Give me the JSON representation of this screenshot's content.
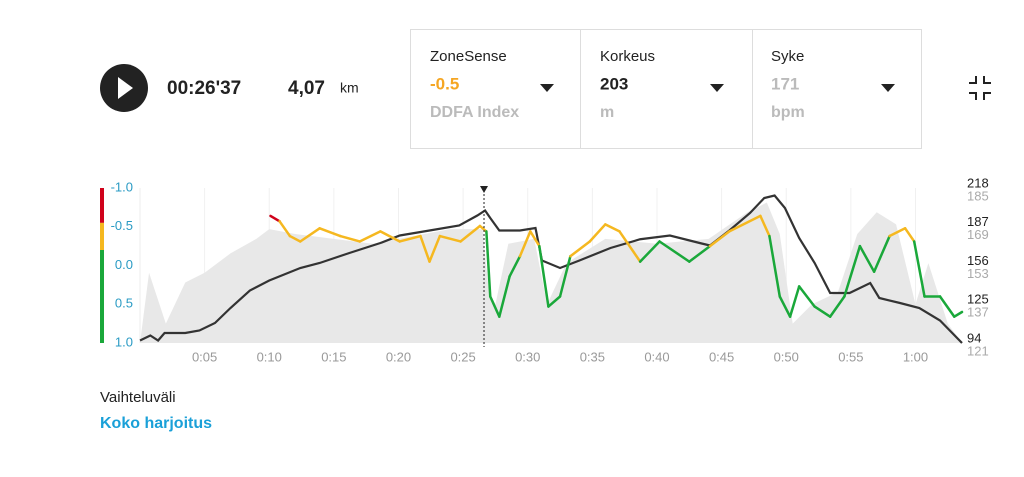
{
  "header": {
    "time": "00:26'37",
    "distance": "4,07",
    "distance_unit": "km"
  },
  "panels": [
    {
      "label": "ZoneSense",
      "value": "-0.5",
      "unit": "DDFA Index",
      "color": "#f5a623"
    },
    {
      "label": "Korkeus",
      "value": "203",
      "unit": "m",
      "color": "#222222"
    },
    {
      "label": "Syke",
      "value": "171",
      "unit": "bpm",
      "color": "#bbbbbb"
    }
  ],
  "chart_data": {
    "type": "line",
    "xlim": [
      0,
      63.6
    ],
    "xticks": [
      {
        "value": 5,
        "label": "0:05"
      },
      {
        "value": 10,
        "label": "0:10"
      },
      {
        "value": 15,
        "label": "0:15"
      },
      {
        "value": 20,
        "label": "0:20"
      },
      {
        "value": 25,
        "label": "0:25"
      },
      {
        "value": 30,
        "label": "0:30"
      },
      {
        "value": 35,
        "label": "0:35"
      },
      {
        "value": 40,
        "label": "0:40"
      },
      {
        "value": 45,
        "label": "0:45"
      },
      {
        "value": 50,
        "label": "0:50"
      },
      {
        "value": 55,
        "label": "0:55"
      },
      {
        "value": 60,
        "label": "1:00"
      }
    ],
    "ylim": [
      -1,
      1
    ],
    "y_inverted": true,
    "yticks": [
      {
        "value": -1,
        "label": "-1.0"
      },
      -0.5,
      {
        "value": 0,
        "label": "0.0"
      },
      0.5,
      {
        "value": 1,
        "label": "1.0"
      }
    ],
    "zones": [
      {
        "range": [
          -1,
          -0.55
        ],
        "color": "#d0021b"
      },
      {
        "range": [
          -0.55,
          -0.2
        ],
        "color": "#f5b820"
      },
      {
        "range": [
          -0.2,
          1
        ],
        "color": "#1aa83a"
      }
    ],
    "y2lim": [
      94,
      218
    ],
    "y2ticks": [
      218,
      187,
      156,
      125,
      94
    ],
    "y3lim": [
      121,
      185
    ],
    "y3ticks": [
      185,
      169,
      153,
      137,
      121
    ],
    "grid": true,
    "series": [
      {
        "axis": "y3",
        "fill": true,
        "color": "#e8e8e8",
        "x": [
          0,
          0.7,
          2,
          3.5,
          5,
          7,
          9,
          10,
          12,
          15,
          18,
          20,
          22,
          24,
          26.5,
          27,
          27.5,
          28.5,
          30.5,
          31.5,
          33,
          36,
          40,
          44,
          47,
          48.5,
          49.5,
          50.5,
          52,
          54,
          55.5,
          57,
          58.5,
          60,
          61,
          62.5,
          63.6
        ],
        "values": [
          121,
          150,
          129,
          146,
          150,
          158,
          164,
          168,
          166,
          164,
          162,
          164,
          166,
          168,
          168,
          142,
          137,
          162,
          164,
          137,
          154,
          164,
          162,
          164,
          175,
          179,
          166,
          129,
          137,
          142,
          166,
          175,
          170,
          137,
          154,
          129,
          121
        ]
      },
      {
        "axis": "y2",
        "color": "#333333",
        "x": [
          0,
          0.8,
          1.4,
          1.9,
          3.5,
          4.6,
          5.8,
          7,
          8.5,
          10,
          12.4,
          13.9,
          16.2,
          18.6,
          20.1,
          22.4,
          24.7,
          26.1,
          26.7,
          27.1,
          27.8,
          29.4,
          30.6,
          31.1,
          32.5,
          34,
          36.4,
          38.7,
          41,
          43.3,
          44.1,
          45.6,
          47.2,
          48.3,
          49.1,
          49.9,
          51,
          52.2,
          53.4,
          54.9,
          56.5,
          57.2,
          58.8,
          60.3,
          61.9,
          63.6
        ],
        "values": [
          96,
          100,
          96,
          102,
          102,
          104,
          110,
          122,
          136,
          144,
          154,
          158,
          166,
          174,
          180,
          184,
          188,
          196,
          200,
          194,
          184,
          184,
          186,
          160,
          154,
          160,
          170,
          177,
          180,
          174,
          172,
          184,
          198,
          210,
          212,
          202,
          178,
          158,
          134,
          134,
          142,
          130,
          126,
          122,
          112,
          94
        ]
      },
      {
        "axis": "y",
        "zoned": true,
        "x": [
          10.1,
          10.8,
          11.6,
          12.4,
          13.9,
          15.5,
          17.0,
          18.6,
          20.1,
          21.7,
          22.4,
          23.2,
          24.8,
          26.3,
          26.8,
          27.1,
          27.8,
          28.6,
          29.4,
          30.2,
          30.9,
          31.6,
          32.5,
          33.3,
          34.8,
          36.0,
          37.1,
          38.7,
          40.2,
          42.5,
          44.1,
          45.6,
          48.0,
          48.7,
          49.5,
          50.3,
          51.0,
          52.2,
          53.4,
          54.5,
          55.7,
          56.8,
          58.0,
          59.2,
          59.9,
          60.7,
          61.9,
          63.0,
          63.6
        ],
        "values": [
          -0.64,
          -0.57,
          -0.38,
          -0.31,
          -0.48,
          -0.38,
          -0.31,
          -0.44,
          -0.31,
          -0.38,
          -0.05,
          -0.38,
          -0.31,
          -0.51,
          -0.44,
          0.4,
          0.66,
          0.14,
          -0.12,
          -0.44,
          -0.25,
          0.53,
          0.4,
          -0.12,
          -0.31,
          -0.53,
          -0.44,
          -0.05,
          -0.31,
          -0.05,
          -0.25,
          -0.44,
          -0.64,
          -0.38,
          0.4,
          0.66,
          0.27,
          0.53,
          0.66,
          0.4,
          -0.25,
          0.08,
          -0.38,
          -0.48,
          -0.31,
          0.4,
          0.4,
          0.66,
          0.6
        ]
      }
    ]
  },
  "footer": {
    "label": "Vaihteluväli",
    "value": "Koko harjoitus"
  }
}
